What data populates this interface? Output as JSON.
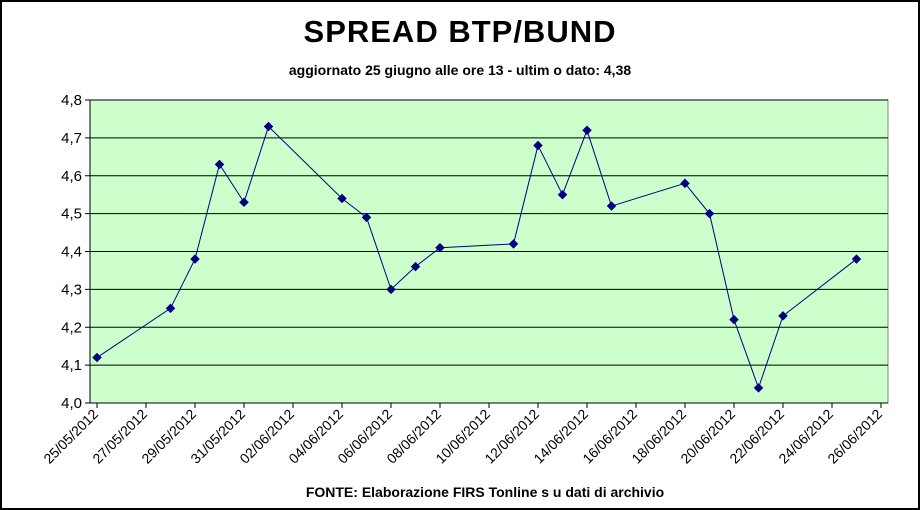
{
  "chart_data": {
    "type": "line",
    "title": "SPREAD BTP/BUND",
    "subtitle": "aggiornato 25 giugno alle ore 13 - ultim o dato: 4,38",
    "source": "FONTE: Elaborazione FIRS Tonline s u dati di archivio",
    "xlabel": "",
    "ylabel": "",
    "x_tick_labels": [
      "25/05/2012",
      "27/05/2012",
      "29/05/2012",
      "31/05/2012",
      "02/06/2012",
      "04/06/2012",
      "06/06/2012",
      "08/06/2012",
      "10/06/2012",
      "12/06/2012",
      "14/06/2012",
      "16/06/2012",
      "18/06/2012",
      "20/06/2012",
      "22/06/2012",
      "24/06/2012",
      "26/06/2012"
    ],
    "y_tick_labels": [
      "4,0",
      "4,1",
      "4,2",
      "4,3",
      "4,4",
      "4,5",
      "4,6",
      "4,7",
      "4,8"
    ],
    "ylim": [
      4.0,
      4.8
    ],
    "xlim": [
      "2012-05-25",
      "2012-06-26"
    ],
    "grid": true,
    "legend": "none",
    "plot_background": "#ccffcc",
    "series": [
      {
        "color": "#000080",
        "points": [
          {
            "x": "2012-05-25",
            "y": 4.12
          },
          {
            "x": "2012-05-28",
            "y": 4.25
          },
          {
            "x": "2012-05-29",
            "y": 4.38
          },
          {
            "x": "2012-05-30",
            "y": 4.63
          },
          {
            "x": "2012-05-31",
            "y": 4.53
          },
          {
            "x": "2012-06-01",
            "y": 4.73
          },
          {
            "x": "2012-06-04",
            "y": 4.54
          },
          {
            "x": "2012-06-05",
            "y": 4.49
          },
          {
            "x": "2012-06-06",
            "y": 4.3
          },
          {
            "x": "2012-06-07",
            "y": 4.36
          },
          {
            "x": "2012-06-08",
            "y": 4.41
          },
          {
            "x": "2012-06-11",
            "y": 4.42
          },
          {
            "x": "2012-06-12",
            "y": 4.68
          },
          {
            "x": "2012-06-13",
            "y": 4.55
          },
          {
            "x": "2012-06-14",
            "y": 4.72
          },
          {
            "x": "2012-06-15",
            "y": 4.52
          },
          {
            "x": "2012-06-18",
            "y": 4.58
          },
          {
            "x": "2012-06-19",
            "y": 4.5
          },
          {
            "x": "2012-06-20",
            "y": 4.22
          },
          {
            "x": "2012-06-21",
            "y": 4.04
          },
          {
            "x": "2012-06-22",
            "y": 4.23
          },
          {
            "x": "2012-06-25",
            "y": 4.38
          }
        ]
      }
    ]
  }
}
